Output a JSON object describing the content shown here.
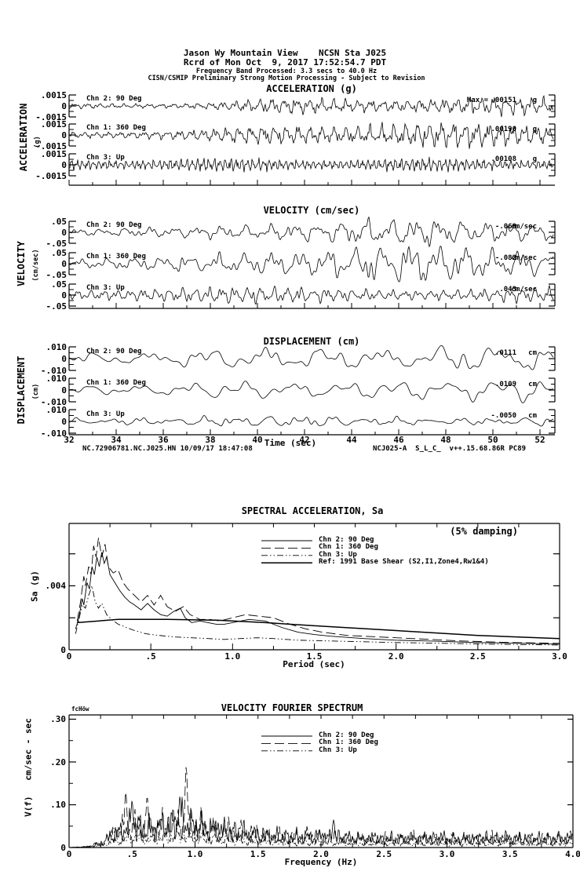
{
  "header": {
    "line1": "Jason Wy Mountain View    NCSN Sta J025",
    "line2": "Rcrd of Mon Oct  9, 2017 17:52:54.7 PDT",
    "line3": "Frequency Band Processed: 3.3 secs to 40.0 Hz",
    "line4": "CISN/CSMIP Preliminary Strong Motion Processing - Subject to Revision"
  },
  "footer": {
    "left": "NC.72906781.NC.J025.HN 10/09/17 18:47:08",
    "right": "NCJ025-A  S_L_C_  v++.15.68.86R PC89"
  },
  "colors": {
    "ink": "#000000",
    "paper": "#ffffff"
  },
  "chart_data": [
    {
      "id": "acceleration",
      "type": "line",
      "title": "ACCELERATION (g)",
      "ylabel": "ACCELERATION",
      "ylabel_unit": "(g)",
      "ytick_labels": [
        ".0015",
        "0",
        "-.0015"
      ],
      "yscale_g": 0.0015,
      "x_range_sec": [
        32,
        52
      ],
      "channels": [
        {
          "label": "Chn 2: 90 Deg",
          "max_prefix": "Max =",
          "max_value": ".00151",
          "max_unit": "g",
          "peak": 0.00151
        },
        {
          "label": "Chn 1: 360 Deg",
          "max_value": ".00190",
          "max_unit": "g",
          "peak": 0.0019
        },
        {
          "label": "Chn 3: Up",
          "max_value": ".00108",
          "max_unit": "g",
          "peak": 0.00108
        }
      ]
    },
    {
      "id": "velocity",
      "type": "line",
      "title": "VELOCITY (cm/sec)",
      "ylabel": "VELOCITY",
      "ylabel_unit": "(cm/sec)",
      "ytick_labels": [
        ".05",
        "0",
        "-.05"
      ],
      "yscale_cms": 0.05,
      "x_range_sec": [
        32,
        52
      ],
      "channels": [
        {
          "label": "Chn 2: 90 Deg",
          "max_value": "-.069",
          "max_unit": "cm/sec",
          "peak": -0.069
        },
        {
          "label": "Chn 1: 360 Deg",
          "max_value": "-.082",
          "max_unit": "cm/sec",
          "peak": -0.082
        },
        {
          "label": "Chn 3: Up",
          "max_value": ".043",
          "max_unit": "cm/sec",
          "peak": 0.043
        }
      ]
    },
    {
      "id": "displacement",
      "type": "line",
      "title": "DISPLACEMENT (cm)",
      "ylabel": "DISPLACEMENT",
      "ylabel_unit": "(cm)",
      "ytick_labels": [
        ".010",
        "0",
        "-.010"
      ],
      "yscale_cm": 0.01,
      "x_range_sec": [
        32,
        52
      ],
      "xtick_labels": [
        "32",
        "34",
        "36",
        "38",
        "40",
        "42",
        "44",
        "46",
        "48",
        "50",
        "52"
      ],
      "xlabel": "Time (sec)",
      "channels": [
        {
          "label": "Chn 2: 90 Deg",
          "max_value": ".0111",
          "max_unit": "cm",
          "peak": 0.0111
        },
        {
          "label": "Chn 1: 360 Deg",
          "max_value": ".0109",
          "max_unit": "cm",
          "peak": 0.0109
        },
        {
          "label": "Chn 3: Up",
          "max_value": "-.0050",
          "max_unit": "cm",
          "peak": -0.005
        }
      ]
    },
    {
      "id": "spectral_acceleration",
      "type": "line",
      "title": "SPECTRAL ACCELERATION, Sa",
      "annotation": "(5% damping)",
      "ylabel": "Sa (g)",
      "ytick_labels": [
        {
          "value": ".004",
          "y": 0.004
        },
        {
          "value": "0",
          "y": 0
        }
      ],
      "xlabel": "Period (sec)",
      "xtick_labels": [
        "0",
        ".5",
        "1.0",
        "1.5",
        "2.0",
        "2.5",
        "3.0"
      ],
      "xlim": [
        0,
        3.0
      ],
      "ylim": [
        0,
        0.0079
      ],
      "grid": false,
      "legend_position": "top-center",
      "series": [
        {
          "name": "Chn 2: 90 Deg",
          "style": "solid",
          "points": [
            [
              0.04,
              0.0013
            ],
            [
              0.06,
              0.002
            ],
            [
              0.08,
              0.0032
            ],
            [
              0.09,
              0.0028
            ],
            [
              0.11,
              0.0042
            ],
            [
              0.125,
              0.0038
            ],
            [
              0.14,
              0.0052
            ],
            [
              0.155,
              0.0047
            ],
            [
              0.17,
              0.0058
            ],
            [
              0.185,
              0.0052
            ],
            [
              0.2,
              0.0061
            ],
            [
              0.215,
              0.0054
            ],
            [
              0.23,
              0.0058
            ],
            [
              0.25,
              0.0047
            ],
            [
              0.28,
              0.0042
            ],
            [
              0.31,
              0.0037
            ],
            [
              0.34,
              0.0033
            ],
            [
              0.37,
              0.003
            ],
            [
              0.4,
              0.0028
            ],
            [
              0.44,
              0.0025
            ],
            [
              0.48,
              0.0029
            ],
            [
              0.52,
              0.0025
            ],
            [
              0.56,
              0.0022
            ],
            [
              0.6,
              0.0021
            ],
            [
              0.64,
              0.0024
            ],
            [
              0.68,
              0.0026
            ],
            [
              0.71,
              0.002
            ],
            [
              0.75,
              0.0017
            ],
            [
              0.8,
              0.0018
            ],
            [
              0.85,
              0.0017
            ],
            [
              0.9,
              0.0016
            ],
            [
              0.95,
              0.0016
            ],
            [
              1.0,
              0.0017
            ],
            [
              1.05,
              0.0018
            ],
            [
              1.1,
              0.0019
            ],
            [
              1.2,
              0.0018
            ],
            [
              1.3,
              0.0014
            ],
            [
              1.4,
              0.0011
            ],
            [
              1.5,
              0.00095
            ],
            [
              1.6,
              0.00085
            ],
            [
              1.8,
              0.0007
            ],
            [
              2.0,
              0.0006
            ],
            [
              2.2,
              0.00055
            ],
            [
              2.5,
              0.00045
            ],
            [
              2.8,
              0.0004
            ],
            [
              3.0,
              0.00035
            ]
          ]
        },
        {
          "name": "Chn 1: 360 Deg",
          "style": "long-dash",
          "points": [
            [
              0.05,
              0.0018
            ],
            [
              0.07,
              0.003
            ],
            [
              0.09,
              0.0046
            ],
            [
              0.1,
              0.004
            ],
            [
              0.12,
              0.0052
            ],
            [
              0.135,
              0.0047
            ],
            [
              0.15,
              0.0065
            ],
            [
              0.165,
              0.0058
            ],
            [
              0.18,
              0.007
            ],
            [
              0.2,
              0.0058
            ],
            [
              0.22,
              0.0066
            ],
            [
              0.24,
              0.0052
            ],
            [
              0.27,
              0.0048
            ],
            [
              0.3,
              0.005
            ],
            [
              0.33,
              0.0042
            ],
            [
              0.36,
              0.0038
            ],
            [
              0.4,
              0.0034
            ],
            [
              0.44,
              0.003
            ],
            [
              0.48,
              0.0034
            ],
            [
              0.52,
              0.0028
            ],
            [
              0.56,
              0.0034
            ],
            [
              0.6,
              0.0027
            ],
            [
              0.65,
              0.0024
            ],
            [
              0.7,
              0.0027
            ],
            [
              0.74,
              0.0022
            ],
            [
              0.8,
              0.0019
            ],
            [
              0.86,
              0.0019
            ],
            [
              0.92,
              0.0018
            ],
            [
              1.0,
              0.002
            ],
            [
              1.08,
              0.0022
            ],
            [
              1.16,
              0.0021
            ],
            [
              1.25,
              0.002
            ],
            [
              1.35,
              0.0016
            ],
            [
              1.45,
              0.0013
            ],
            [
              1.55,
              0.0011
            ],
            [
              1.7,
              0.0009
            ],
            [
              1.9,
              0.0008
            ],
            [
              2.1,
              0.0007
            ],
            [
              2.4,
              0.00055
            ],
            [
              2.7,
              0.00045
            ],
            [
              3.0,
              0.0004
            ]
          ]
        },
        {
          "name": "Chn 3: Up",
          "style": "dash-dot-dot",
          "points": [
            [
              0.04,
              0.001
            ],
            [
              0.06,
              0.0019
            ],
            [
              0.08,
              0.0028
            ],
            [
              0.1,
              0.0026
            ],
            [
              0.12,
              0.0034
            ],
            [
              0.14,
              0.004
            ],
            [
              0.16,
              0.003
            ],
            [
              0.18,
              0.0026
            ],
            [
              0.2,
              0.0029
            ],
            [
              0.23,
              0.0022
            ],
            [
              0.26,
              0.0019
            ],
            [
              0.3,
              0.0016
            ],
            [
              0.35,
              0.0014
            ],
            [
              0.4,
              0.0012
            ],
            [
              0.47,
              0.001
            ],
            [
              0.55,
              0.0009
            ],
            [
              0.65,
              0.0008
            ],
            [
              0.75,
              0.00075
            ],
            [
              0.85,
              0.0007
            ],
            [
              0.95,
              0.00065
            ],
            [
              1.05,
              0.0007
            ],
            [
              1.15,
              0.00075
            ],
            [
              1.25,
              0.0007
            ],
            [
              1.4,
              0.0006
            ],
            [
              1.6,
              0.00055
            ],
            [
              1.8,
              0.0005
            ],
            [
              2.0,
              0.00045
            ],
            [
              2.3,
              0.0004
            ],
            [
              2.6,
              0.00035
            ],
            [
              3.0,
              0.0003
            ]
          ]
        },
        {
          "name": "Ref: 1991 Base Shear (S2,I1,Zone4,Rw1&4)",
          "style": "solid-thick",
          "points": [
            [
              0.05,
              0.0017
            ],
            [
              0.3,
              0.0019
            ],
            [
              0.6,
              0.0019
            ],
            [
              0.9,
              0.00185
            ],
            [
              1.2,
              0.0017
            ],
            [
              1.5,
              0.0015
            ],
            [
              2.0,
              0.0012
            ],
            [
              2.5,
              0.0009
            ],
            [
              3.0,
              0.0007
            ]
          ]
        }
      ]
    },
    {
      "id": "velocity_fourier_spectrum",
      "type": "line",
      "title": "VELOCITY FOURIER SPECTRUM",
      "corner_label": "fcHöw",
      "ylabel": "V(f)   cm/sec - sec",
      "ytick_labels": [
        {
          "value": ".30",
          "y": 0.3
        },
        {
          "value": ".20",
          "y": 0.2
        },
        {
          "value": ".10",
          "y": 0.1
        },
        {
          "value": "0",
          "y": 0
        }
      ],
      "xlabel": "Frequency (Hz)",
      "xtick_labels": [
        "0",
        ".5",
        "1.0",
        "1.5",
        "2.0",
        "2.5",
        "3.0",
        "3.5",
        "4.0"
      ],
      "xlim": [
        0,
        4.0
      ],
      "ylim": [
        0,
        0.31
      ],
      "grid": false,
      "legend_position": "top-center",
      "envelope": [
        [
          0,
          0
        ],
        [
          0.15,
          0.004
        ],
        [
          0.25,
          0.02
        ],
        [
          0.35,
          0.06
        ],
        [
          0.45,
          0.09
        ],
        [
          0.55,
          0.105
        ],
        [
          0.62,
          0.085
        ],
        [
          0.7,
          0.1
        ],
        [
          0.8,
          0.11
        ],
        [
          0.9,
          0.125
        ],
        [
          1.0,
          0.105
        ],
        [
          1.1,
          0.09
        ],
        [
          1.25,
          0.08
        ],
        [
          1.4,
          0.07
        ],
        [
          1.6,
          0.055
        ],
        [
          1.8,
          0.05
        ],
        [
          2.0,
          0.055
        ],
        [
          2.2,
          0.045
        ],
        [
          2.5,
          0.04
        ],
        [
          2.8,
          0.045
        ],
        [
          3.1,
          0.04
        ],
        [
          3.4,
          0.045
        ],
        [
          3.7,
          0.04
        ],
        [
          4.0,
          0.045
        ]
      ],
      "channels": [
        {
          "name": "Chn 2: 90 Deg",
          "style": "solid",
          "amp": 1.0,
          "seed": 11,
          "spikes": [
            [
              0.5,
              0.11
            ],
            [
              0.88,
              0.12
            ],
            [
              2.1,
              0.065
            ]
          ]
        },
        {
          "name": "Chn 1: 360 Deg",
          "style": "long-dash",
          "amp": 1.0,
          "seed": 22,
          "spikes": [
            [
              0.45,
              0.13
            ],
            [
              0.62,
              0.12
            ],
            [
              0.93,
              0.19
            ]
          ]
        },
        {
          "name": "Chn 3: Up",
          "style": "dash-dot-dot",
          "amp": 0.45,
          "seed": 33,
          "spikes": [
            [
              0.35,
              0.05
            ]
          ]
        }
      ]
    }
  ]
}
